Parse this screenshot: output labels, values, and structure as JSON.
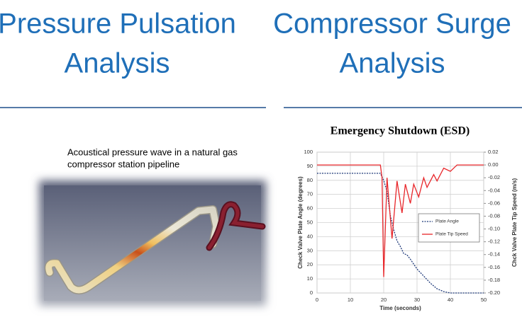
{
  "left": {
    "title_lines": [
      "Pressure Pulsation",
      "Analysis"
    ],
    "caption_lines": [
      "Acoustical pressure wave in a natural gas",
      "compressor station pipeline"
    ]
  },
  "right": {
    "title_lines": [
      "Compressor Surge",
      "Analysis"
    ],
    "chart_data": {
      "type": "line",
      "title": "Emergency Shutdown (ESD)",
      "x_label": "Time (seconds)",
      "y_label": "Check Valve Plate Angle (degrees)",
      "y2_label": "Chck Valve Plate Tip Speed (m/s)",
      "xlim": [
        0,
        50
      ],
      "xticks": [
        0,
        10,
        20,
        30,
        40,
        50
      ],
      "ylim": [
        0,
        100
      ],
      "yticks": [
        0,
        10,
        20,
        30,
        40,
        50,
        60,
        70,
        80,
        90,
        100
      ],
      "y2lim": [
        -0.2,
        0.02
      ],
      "y2ticks": [
        0.02,
        {
          "value": 0,
          "label": "0.00"
        },
        -0.02,
        -0.04,
        -0.06,
        -0.08,
        {
          "value": -0.1,
          "label": "-0.10"
        },
        -0.12,
        -0.14,
        -0.16,
        -0.18,
        {
          "value": -0.2,
          "label": "-0.20"
        }
      ],
      "grid": true,
      "legend": "right",
      "series": [
        {
          "name": "Plate Angle",
          "color": "#1f3a7a",
          "dash": true,
          "x": [
            0,
            19,
            20,
            21,
            22,
            23,
            24,
            25,
            26,
            27,
            28,
            30,
            32,
            34,
            36,
            38,
            40,
            50
          ],
          "values": [
            85,
            85,
            80,
            72,
            55,
            45,
            37,
            33,
            28,
            27,
            24,
            17,
            12,
            7,
            3,
            1,
            0,
            0
          ]
        },
        {
          "name": "Plate Tip Speed",
          "color": "#e8262a",
          "axis": "y2",
          "x": [
            0,
            19,
            19.5,
            20,
            21,
            22.5,
            24,
            25.5,
            26.5,
            28,
            29,
            30.5,
            32,
            33,
            35,
            36,
            38,
            40,
            42,
            50
          ],
          "values": [
            0,
            0,
            -0.02,
            -0.175,
            -0.02,
            -0.115,
            -0.025,
            -0.075,
            -0.03,
            -0.06,
            -0.03,
            -0.05,
            -0.02,
            -0.035,
            -0.015,
            -0.025,
            -0.005,
            -0.01,
            0,
            0
          ]
        }
      ]
    }
  }
}
